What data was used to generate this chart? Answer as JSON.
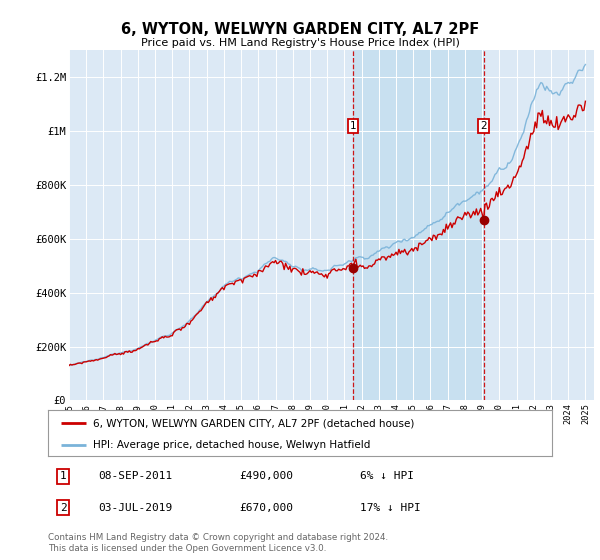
{
  "title": "6, WYTON, WELWYN GARDEN CITY, AL7 2PF",
  "subtitle": "Price paid vs. HM Land Registry's House Price Index (HPI)",
  "ylim": [
    0,
    1300000
  ],
  "yticks": [
    0,
    200000,
    400000,
    600000,
    800000,
    1000000,
    1200000
  ],
  "ytick_labels": [
    "£0",
    "£200K",
    "£400K",
    "£600K",
    "£800K",
    "£1M",
    "£1.2M"
  ],
  "background_color": "#ffffff",
  "plot_bg_color": "#dce9f5",
  "hpi_color": "#7ab3d9",
  "price_color": "#cc0000",
  "shade_color": "#c5dff0",
  "marker1_month_idx": 198,
  "marker1_price": 490000,
  "marker1_date_str": "08-SEP-2011",
  "marker1_pct": "6% ↓ HPI",
  "marker2_month_idx": 289,
  "marker2_price": 670000,
  "marker2_date_str": "03-JUL-2019",
  "marker2_pct": "17% ↓ HPI",
  "legend_price_label": "6, WYTON, WELWYN GARDEN CITY, AL7 2PF (detached house)",
  "legend_hpi_label": "HPI: Average price, detached house, Welwyn Hatfield",
  "footer": "Contains HM Land Registry data © Crown copyright and database right 2024.\nThis data is licensed under the Open Government Licence v3.0.",
  "start_year": 1995,
  "n_months": 361
}
